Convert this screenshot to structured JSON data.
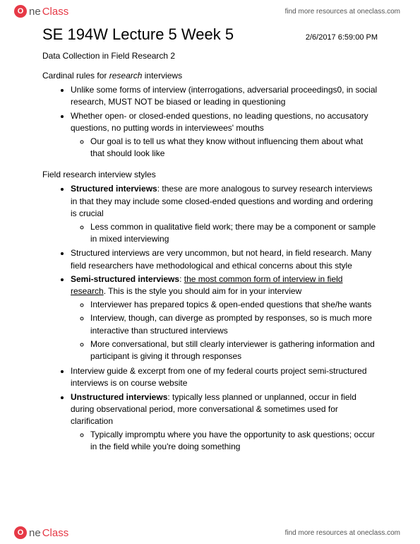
{
  "brand": {
    "circle_letter": "O",
    "part1": "ne",
    "part2": "Class",
    "tagline": "find more resources at oneclass.com",
    "circle_bg": "#e63946"
  },
  "doc": {
    "title": "SE 194W Lecture 5 Week 5",
    "timestamp": "2/6/2017 6:59:00 PM",
    "subtitle": "Data Collection in Field Research 2"
  },
  "sectionA": {
    "label_pre": "Cardinal rules for ",
    "label_italic": "research",
    "label_post": " interviews",
    "b1": "Unlike some forms of interview (interrogations, adversarial proceedings0, in social research, MUST NOT be biased or leading in questioning",
    "b2": "Whether open- or closed-ended questions, no leading questions, no accusatory questions, no putting words in interviewees' mouths",
    "b2s1": "Our goal is to tell us what they know without influencing them about what that should look like"
  },
  "sectionB": {
    "label": "Field research interview styles",
    "b1_bold": "Structured interviews",
    "b1_rest": ": these are more analogous to survey research interviews in that they may include some closed-ended questions and wording and ordering is crucial",
    "b1s1": "Less common in qualitative field work; there may be a component or sample in mixed interviewing",
    "b2": "Structured interviews are very uncommon, but not heard, in field research. Many field researchers have methodological and ethical concerns about this style",
    "b3_bold": "Semi-structured interviews",
    "b3_colon": ": ",
    "b3_uline": "the most common form of interview in field research",
    "b3_rest": ". This is the style you should aim for in your interview",
    "b3s1": "Interviewer has prepared topics & open-ended questions that she/he wants",
    "b3s2": "Interview, though, can diverge as prompted by responses, so is much more interactive than structured interviews",
    "b3s3": "More conversational, but still clearly interviewer is gathering information and participant is giving it through responses",
    "b4": "Interview guide & excerpt from one of my federal courts project semi-structured interviews is on course website",
    "b5_bold": "Unstructured interviews",
    "b5_rest": ": typically less planned or unplanned, occur in field during observational period, more conversational & sometimes used for clarification",
    "b5s1": "Typically impromptu where you have the opportunity to ask questions; occur in the field while you're doing something"
  }
}
